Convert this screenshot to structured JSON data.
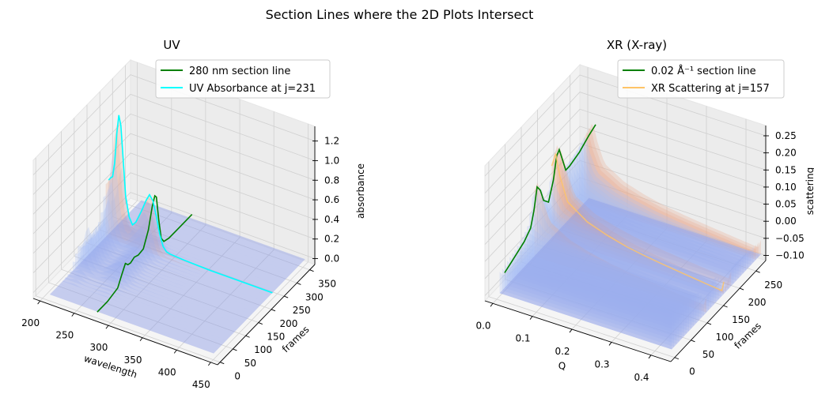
{
  "suptitle": "Section Lines where the 2D Plots Intersect",
  "chart_data": [
    {
      "type": "surface3d",
      "title": "UV",
      "xlabel": "wavelength",
      "ylabel": "frames",
      "zlabel": "absorbance",
      "xticks": [
        "200",
        "250",
        "300",
        "350",
        "400",
        "450"
      ],
      "yticks": [
        "0",
        "50",
        "100",
        "150",
        "200",
        "250",
        "300",
        "350"
      ],
      "zticks": [
        "0.0",
        "0.2",
        "0.4",
        "0.6",
        "0.8",
        "1.0",
        "1.2"
      ],
      "xlim": [
        190,
        460
      ],
      "ylim": [
        -10,
        370
      ],
      "zlim": [
        -0.06,
        1.35
      ],
      "legend_position": "top-right",
      "series": [
        {
          "name": "280 nm section line",
          "color": "#008000",
          "axis": "frames",
          "fixed_wavelength": 280,
          "x": [
            0,
            40,
            80,
            95,
            110,
            120,
            130,
            145,
            160,
            180,
            200,
            215,
            225,
            231,
            240,
            250,
            260,
            280,
            320,
            370
          ],
          "z": [
            0,
            0,
            0.03,
            0.12,
            0.2,
            0.16,
            0.15,
            0.17,
            0.15,
            0.16,
            0.3,
            0.5,
            0.58,
            0.55,
            0.3,
            0.08,
            0.02,
            0,
            0,
            0
          ]
        },
        {
          "name": "UV Absorbance at j=231",
          "color": "#00ffff",
          "axis": "wavelength",
          "fixed_frame": 231,
          "x": [
            210,
            213,
            216,
            219,
            222,
            225,
            228,
            231,
            235,
            240,
            245,
            250,
            258,
            265,
            270,
            275,
            280,
            285,
            290,
            295,
            300,
            320,
            360,
            400,
            450
          ],
          "z": [
            0.55,
            0.58,
            0.6,
            0.75,
            1.05,
            1.25,
            1.15,
            0.85,
            0.45,
            0.25,
            0.18,
            0.22,
            0.35,
            0.48,
            0.55,
            0.5,
            0.35,
            0.18,
            0.07,
            0.03,
            0.02,
            0.01,
            0.0,
            0.0,
            0.0
          ]
        }
      ]
    },
    {
      "type": "surface3d",
      "title": "XR (X-ray)",
      "xlabel": "Q",
      "ylabel": "frames",
      "zlabel": "scattering",
      "xticks": [
        "0.0",
        "0.1",
        "0.2",
        "0.3",
        "0.4"
      ],
      "yticks": [
        "0",
        "50",
        "100",
        "150",
        "200",
        "250"
      ],
      "zticks": [
        "−0.10",
        "−0.05",
        "0.00",
        "0.05",
        "0.10",
        "0.15",
        "0.20",
        "0.25"
      ],
      "xlim": [
        -0.02,
        0.45
      ],
      "ylim": [
        -12,
        280
      ],
      "zlim": [
        -0.115,
        0.28
      ],
      "legend_position": "top-right",
      "series": [
        {
          "name": "0.02 Å⁻¹ section line",
          "color": "#008000",
          "axis": "frames",
          "fixed_q": 0.02,
          "x": [
            0,
            20,
            40,
            60,
            80,
            90,
            100,
            110,
            120,
            135,
            150,
            160,
            168,
            178,
            188,
            200,
            230,
            260,
            280
          ],
          "z": [
            -0.03,
            -0.02,
            -0.01,
            0.0,
            0.02,
            0.06,
            0.12,
            0.1,
            0.06,
            0.04,
            0.09,
            0.15,
            0.16,
            0.12,
            0.08,
            0.08,
            0.09,
            0.11,
            0.12
          ]
        },
        {
          "name": "XR Scattering at j=157",
          "color": "#ffc466",
          "axis": "Q",
          "fixed_frame": 157,
          "x": [
            0.01,
            0.02,
            0.03,
            0.05,
            0.1,
            0.15,
            0.2,
            0.25,
            0.3,
            0.35,
            0.4,
            0.44,
            0.445
          ],
          "z": [
            0.12,
            0.16,
            0.1,
            0.03,
            -0.01,
            -0.03,
            -0.045,
            -0.055,
            -0.063,
            -0.07,
            -0.077,
            -0.082,
            -0.055
          ]
        }
      ]
    }
  ]
}
